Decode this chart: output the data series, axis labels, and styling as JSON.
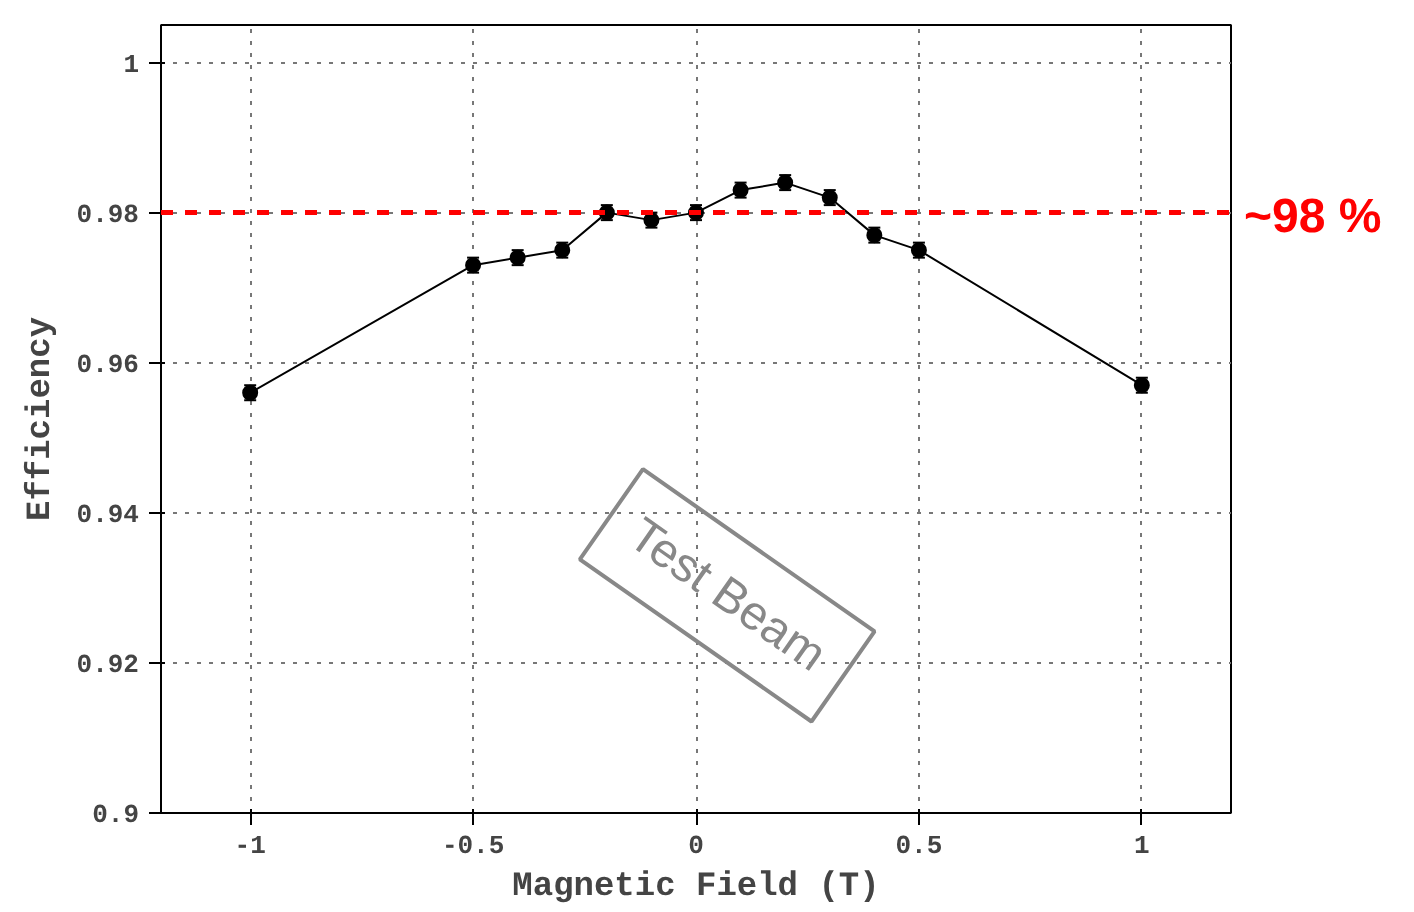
{
  "chart_data": {
    "type": "line",
    "xlabel": "Magnetic Field (T)",
    "ylabel": "Efficiency",
    "x": [
      -1,
      -0.5,
      -0.4,
      -0.3,
      -0.2,
      -0.1,
      0,
      0.1,
      0.2,
      0.3,
      0.4,
      0.5,
      1
    ],
    "series": [
      {
        "color": "#000000",
        "values": [
          0.956,
          0.973,
          0.974,
          0.975,
          0.98,
          0.979,
          0.98,
          0.983,
          0.984,
          0.982,
          0.977,
          0.975,
          0.957
        ],
        "errors": [
          0.001,
          0.001,
          0.001,
          0.001,
          0.001,
          0.001,
          0.001,
          0.001,
          0.001,
          0.001,
          0.001,
          0.001,
          0.001
        ]
      }
    ],
    "marker": "circle",
    "line_style": "solid",
    "xlim": [
      -1.2,
      1.2
    ],
    "ylim": [
      0.9,
      1.005
    ],
    "xticks": [
      -1,
      -0.5,
      0,
      0.5,
      1
    ],
    "yticks": [
      0.9,
      0.92,
      0.94,
      0.96,
      0.98,
      1
    ],
    "grid": true,
    "ref_lines": [
      {
        "axis": "y",
        "value": 0.98,
        "label": "~98 %",
        "color": "#ff0000",
        "line_style": "dashed"
      }
    ],
    "annotations": [
      "Test Beam"
    ]
  }
}
